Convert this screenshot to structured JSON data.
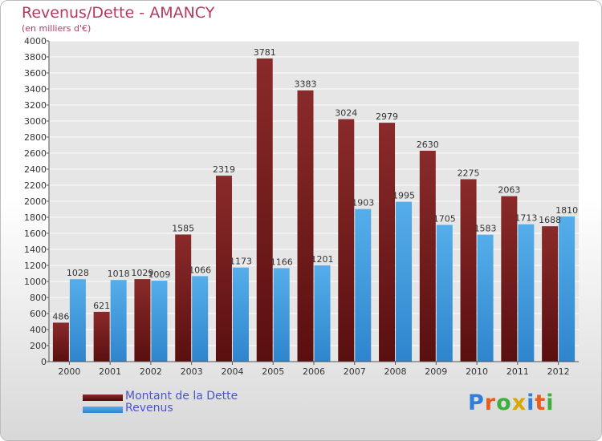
{
  "header": {
    "title": "Revenus/Dette - AMANCY",
    "subtitle": "(en milliers d'€)"
  },
  "legend": [
    {
      "label": "Montant de la Dette",
      "color": "#6b1a1a"
    },
    {
      "label": "Revenus",
      "color": "#3e9be0"
    }
  ],
  "logo": {
    "letters": [
      "P",
      "r",
      "o",
      "x",
      "i",
      "t",
      "i"
    ],
    "colors": [
      "#2f7fd8",
      "#e65c1e",
      "#3fae3f",
      "#d8a800",
      "#2f7fd8",
      "#e65c1e",
      "#3fae3f"
    ]
  },
  "chart_data": {
    "type": "bar",
    "title": "Revenus/Dette - AMANCY",
    "subtitle": "(en milliers d'€)",
    "categories": [
      "2000",
      "2001",
      "2002",
      "2003",
      "2004",
      "2005",
      "2006",
      "2007",
      "2008",
      "2009",
      "2010",
      "2011",
      "2012"
    ],
    "series": [
      {
        "name": "Montant de la Dette",
        "color": "#7a1e1e",
        "values": [
          486,
          621,
          1029,
          1585,
          2319,
          3781,
          3383,
          3024,
          2979,
          2630,
          2275,
          2063,
          1688
        ]
      },
      {
        "name": "Revenus",
        "color": "#42a0e3",
        "values": [
          1028,
          1018,
          1009,
          1066,
          1173,
          1166,
          1201,
          1903,
          1995,
          1705,
          1583,
          1713,
          1810
        ]
      }
    ],
    "ylim": [
      0,
      4000
    ],
    "yticks": [
      0,
      200,
      400,
      600,
      800,
      1000,
      1200,
      1400,
      1600,
      1800,
      2000,
      2200,
      2400,
      2600,
      2800,
      3000,
      3200,
      3400,
      3600,
      3800,
      4000
    ],
    "grid": true,
    "legend_position": "bottom-left"
  }
}
